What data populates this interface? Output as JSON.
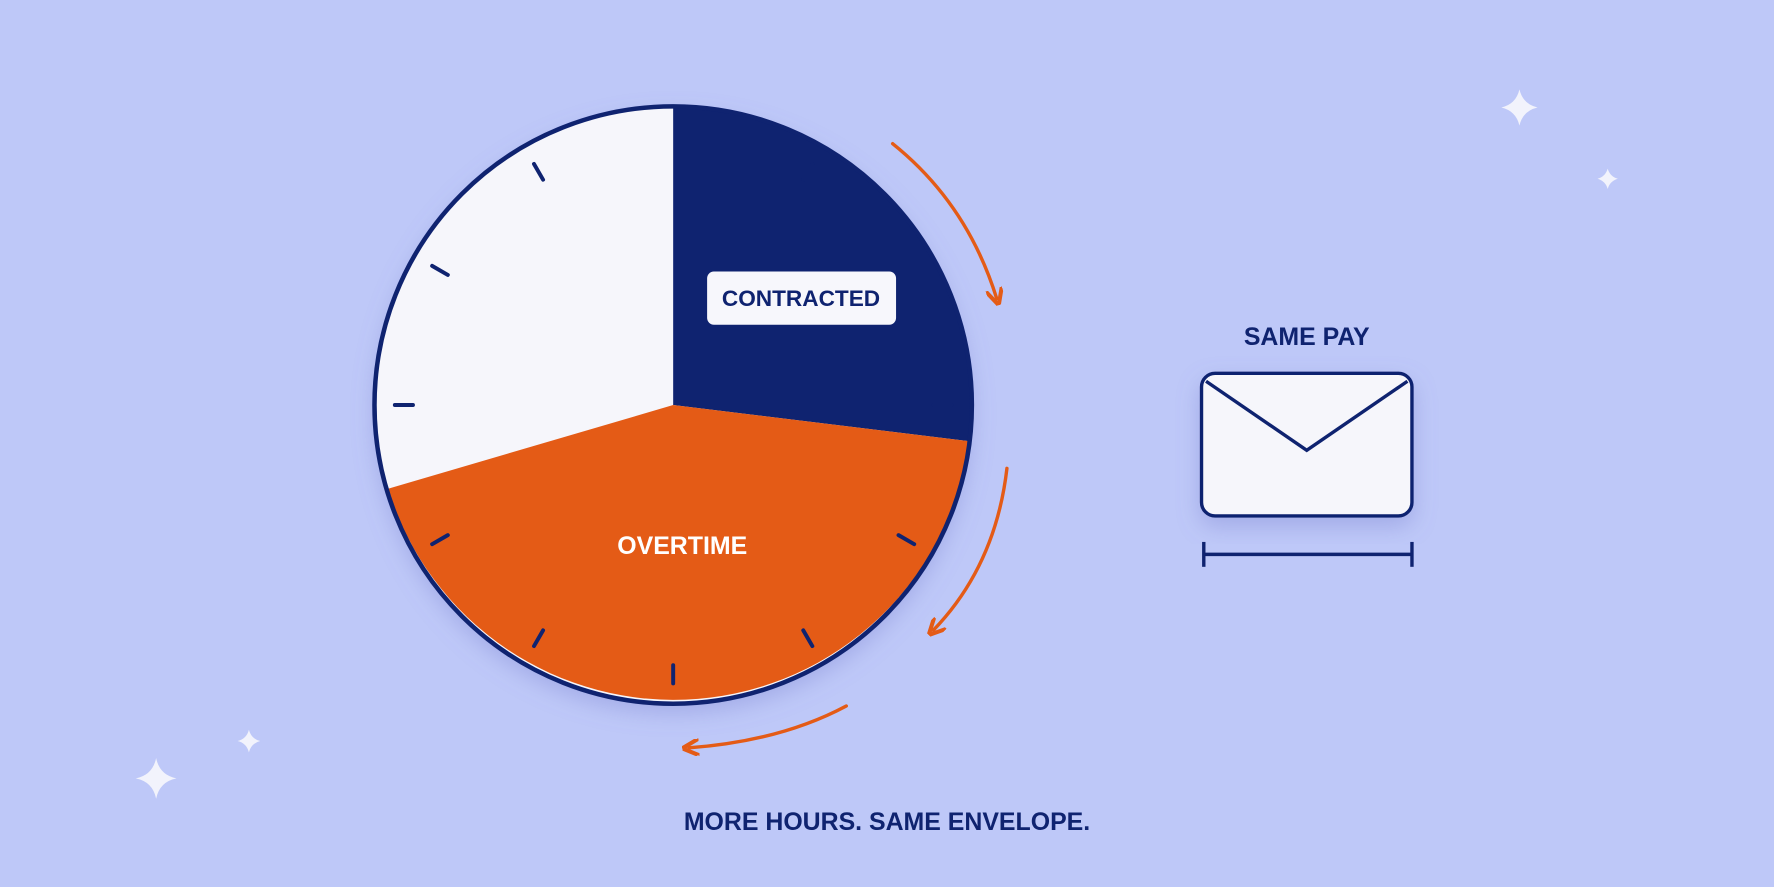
{
  "clock": {
    "contracted_label": "CONTRACTED",
    "overtime_label": "OVERTIME"
  },
  "envelope": {
    "caption": "SAME PAY"
  },
  "footer": {
    "tagline": "MORE HOURS. SAME ENVELOPE."
  }
}
